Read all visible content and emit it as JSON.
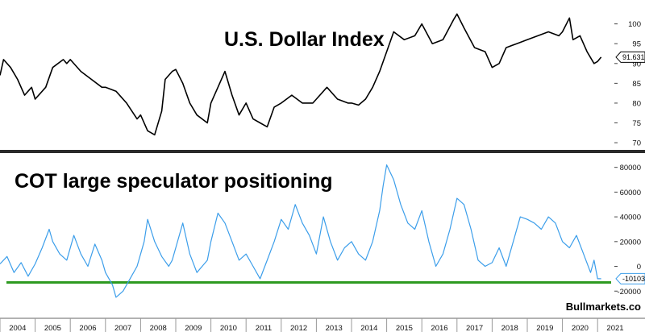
{
  "chart_data": [
    {
      "type": "line",
      "title": "U.S. Dollar Index",
      "ylim": [
        69,
        104
      ],
      "y_ticks": [
        70,
        75,
        80,
        85,
        90,
        95,
        100
      ],
      "last_value_label": "91.631",
      "grid": false,
      "series": [
        {
          "color": "#000000",
          "x": [
            2004.0,
            2004.1,
            2004.3,
            2004.5,
            2004.7,
            2004.9,
            2005.0,
            2005.3,
            2005.5,
            2005.8,
            2005.9,
            2006.0,
            2006.3,
            2006.6,
            2006.9,
            2007.0,
            2007.3,
            2007.6,
            2007.9,
            2008.0,
            2008.2,
            2008.4,
            2008.6,
            2008.7,
            2008.9,
            2009.0,
            2009.2,
            2009.4,
            2009.6,
            2009.9,
            2010.0,
            2010.2,
            2010.4,
            2010.6,
            2010.8,
            2011.0,
            2011.2,
            2011.4,
            2011.6,
            2011.8,
            2012.0,
            2012.3,
            2012.6,
            2012.9,
            2013.0,
            2013.3,
            2013.6,
            2013.9,
            2014.0,
            2014.2,
            2014.4,
            2014.6,
            2014.8,
            2015.0,
            2015.2,
            2015.5,
            2015.8,
            2016.0,
            2016.3,
            2016.6,
            2016.9,
            2017.0,
            2017.2,
            2017.5,
            2017.8,
            2018.0,
            2018.2,
            2018.4,
            2018.7,
            2019.0,
            2019.3,
            2019.6,
            2019.9,
            2020.0,
            2020.2,
            2020.3,
            2020.5,
            2020.7,
            2020.9,
            2021.0,
            2021.1
          ],
          "values": [
            87.0,
            91.0,
            89.0,
            86.0,
            82.0,
            84.0,
            81.0,
            84.0,
            89.0,
            91.0,
            90.0,
            91.0,
            88.0,
            86.0,
            84.0,
            84.0,
            83.0,
            80.0,
            76.0,
            77.0,
            73.0,
            72.0,
            78.0,
            86.0,
            88.0,
            88.5,
            85.0,
            80.0,
            77.0,
            75.0,
            80.0,
            84.0,
            88.0,
            82.0,
            77.0,
            80.0,
            76.0,
            75.0,
            74.0,
            79.0,
            80.0,
            82.0,
            80.0,
            80.0,
            81.0,
            84.0,
            81.0,
            80.0,
            80.0,
            79.5,
            81.0,
            84.0,
            88.0,
            93.0,
            98.0,
            96.0,
            97.0,
            100.0,
            95.0,
            96.0,
            101.0,
            102.5,
            99.0,
            94.0,
            93.0,
            89.0,
            90.0,
            94.0,
            95.0,
            96.0,
            97.0,
            98.0,
            97.0,
            98.0,
            101.5,
            96.0,
            97.0,
            93.0,
            90.0,
            90.5,
            91.6
          ]
        }
      ]
    },
    {
      "type": "line",
      "title": "COT large speculator positioning",
      "ylim": [
        -27000,
        85000
      ],
      "y_ticks": [
        -20000,
        0,
        20000,
        40000,
        60000,
        80000
      ],
      "last_value_label": "-10103",
      "reference_line": {
        "value": -13000,
        "color": "#2e9a21"
      },
      "x_ticks": [
        "2004",
        "2005",
        "2006",
        "2007",
        "2008",
        "2009",
        "2010",
        "2011",
        "2012",
        "2013",
        "2014",
        "2015",
        "2016",
        "2017",
        "2018",
        "2019",
        "2020",
        "2021"
      ],
      "grid": false,
      "series": [
        {
          "color": "#3c9eea",
          "x": [
            2004.0,
            2004.2,
            2004.4,
            2004.6,
            2004.8,
            2005.0,
            2005.2,
            2005.4,
            2005.5,
            2005.7,
            2005.9,
            2006.1,
            2006.3,
            2006.5,
            2006.7,
            2006.9,
            2007.0,
            2007.2,
            2007.3,
            2007.5,
            2007.7,
            2007.9,
            2008.0,
            2008.1,
            2008.2,
            2008.4,
            2008.6,
            2008.8,
            2008.9,
            2009.0,
            2009.2,
            2009.4,
            2009.6,
            2009.9,
            2010.0,
            2010.2,
            2010.4,
            2010.6,
            2010.8,
            2011.0,
            2011.2,
            2011.4,
            2011.6,
            2011.8,
            2012.0,
            2012.2,
            2012.4,
            2012.6,
            2012.8,
            2013.0,
            2013.2,
            2013.4,
            2013.6,
            2013.8,
            2014.0,
            2014.2,
            2014.4,
            2014.6,
            2014.8,
            2014.9,
            2015.0,
            2015.2,
            2015.4,
            2015.6,
            2015.8,
            2016.0,
            2016.2,
            2016.4,
            2016.6,
            2016.8,
            2017.0,
            2017.2,
            2017.4,
            2017.6,
            2017.8,
            2018.0,
            2018.2,
            2018.4,
            2018.6,
            2018.8,
            2019.0,
            2019.2,
            2019.4,
            2019.6,
            2019.8,
            2020.0,
            2020.2,
            2020.4,
            2020.6,
            2020.8,
            2020.9,
            2021.0,
            2021.1
          ],
          "values": [
            2000,
            8000,
            -5000,
            3000,
            -8000,
            2000,
            15000,
            30000,
            20000,
            10000,
            5000,
            25000,
            10000,
            0,
            18000,
            5000,
            -5000,
            -15000,
            -25000,
            -20000,
            -10000,
            0,
            10000,
            20000,
            38000,
            20000,
            8000,
            0,
            5000,
            15000,
            35000,
            10000,
            -5000,
            5000,
            20000,
            43000,
            35000,
            20000,
            5000,
            10000,
            0,
            -10000,
            5000,
            20000,
            38000,
            30000,
            50000,
            35000,
            25000,
            10000,
            40000,
            20000,
            5000,
            15000,
            20000,
            10000,
            5000,
            20000,
            45000,
            65000,
            82000,
            70000,
            50000,
            35000,
            30000,
            45000,
            20000,
            0,
            10000,
            30000,
            55000,
            50000,
            30000,
            5000,
            0,
            3000,
            15000,
            0,
            20000,
            40000,
            38000,
            35000,
            30000,
            40000,
            35000,
            20000,
            15000,
            25000,
            10000,
            -5000,
            5000,
            -10000,
            -10000
          ]
        }
      ]
    }
  ],
  "credit": "Bullmarkets.co"
}
